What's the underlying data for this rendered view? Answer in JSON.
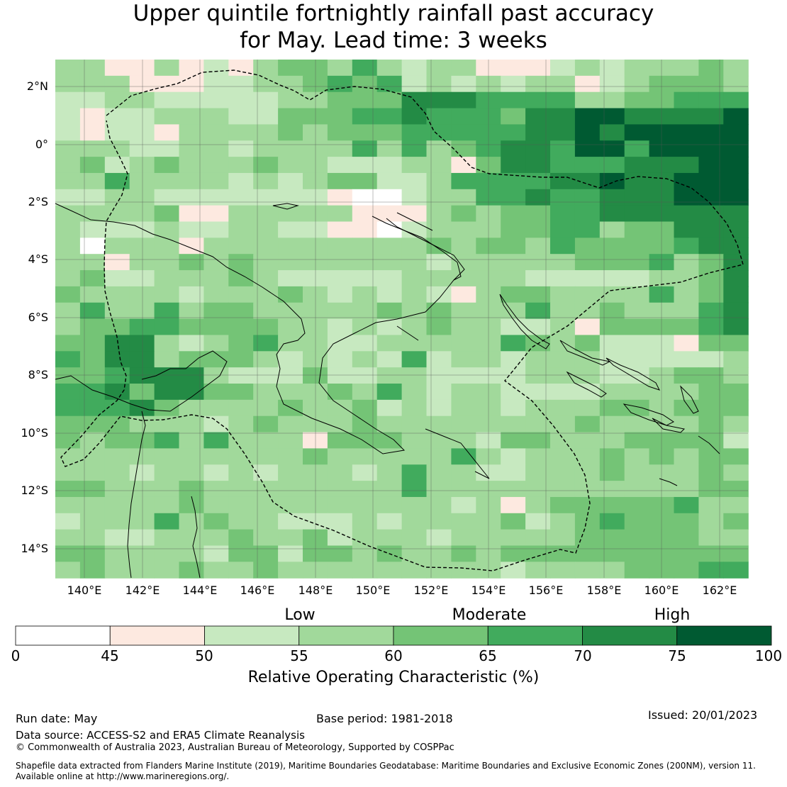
{
  "title": {
    "line1": "Upper quintile fortnightly rainfall past accuracy",
    "line2": "for May. Lead time: 3 weeks"
  },
  "map": {
    "lat_labels": [
      "2°N",
      "0°",
      "2°S",
      "4°S",
      "6°S",
      "8°S",
      "10°S",
      "12°S",
      "14°S"
    ],
    "lon_labels": [
      "140°E",
      "142°E",
      "144°E",
      "146°E",
      "148°E",
      "150°E",
      "152°E",
      "154°E",
      "156°E",
      "158°E",
      "160°E",
      "162°E"
    ],
    "bins_colors": [
      "#ffffff",
      "#fde9e0",
      "#c7e9c0",
      "#a1d99b",
      "#74c476",
      "#41ab5d",
      "#238b45",
      "#005a32"
    ],
    "coastline_color": "#000000",
    "eez_boundary_style": "dashed"
  },
  "legend": {
    "categories": [
      "Low",
      "Moderate",
      "High"
    ],
    "ticks": [
      "0",
      "45",
      "50",
      "55",
      "60",
      "65",
      "70",
      "75",
      "100"
    ],
    "title": "Relative Operating Characteristic (%)"
  },
  "footer": {
    "run_date": "Run date: May",
    "base_period": "Base period: 1981-2018",
    "issued": "Issued: 20/01/2023",
    "data_source": "Data source: ACCESS-S2 and ERA5 Climate Reanalysis",
    "copyright": "© Commonwealth of Australia 2023, Australian Bureau of Meteorology, Supported by COSPPac",
    "shapefile_line1": "Shapefile data extracted from Flanders Marine Institute (2019), Maritime Boundaries Geodatabase: Maritime Boundaries and Exclusive Economic Zones (200NM), version 11.",
    "shapefile_line2": "Available online at http://www.marineregions.org/."
  }
}
